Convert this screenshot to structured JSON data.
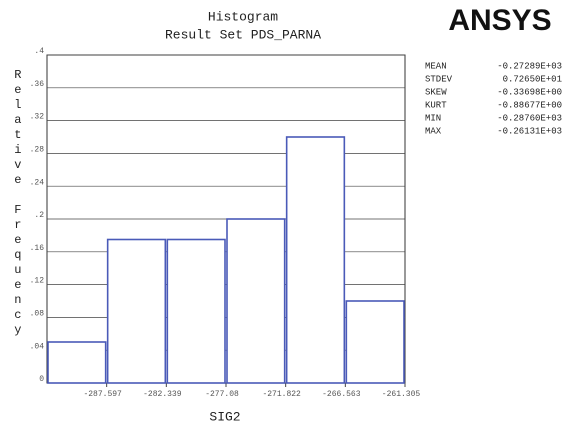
{
  "chart_data": {
    "type": "histogram",
    "title": "Histogram",
    "subtitle": "Result Set PDS_PARNA",
    "logo": "ANSYS",
    "xlabel": "SIG2",
    "ylabel": "Relative Frequency",
    "bins": [
      -292.855,
      -287.597,
      -282.339,
      -277.08,
      -271.822,
      -266.563,
      -261.305
    ],
    "values": [
      0.05,
      0.175,
      0.175,
      0.2,
      0.3,
      0.1
    ],
    "color": "#4a5ab8",
    "xlim": [
      -292.855,
      -261.305
    ],
    "xticks": [
      -287.597,
      -282.339,
      -277.08,
      -271.822,
      -266.563,
      -261.305
    ],
    "ylim": [
      0,
      0.4
    ],
    "yticks": [
      0,
      {
        "value": 0.04,
        "label": ".04"
      },
      {
        "value": 0.08,
        "label": ".08"
      },
      {
        "value": 0.12,
        "label": ".12"
      },
      {
        "value": 0.16,
        "label": ".16"
      },
      {
        "value": 0.2,
        "label": ".2"
      },
      {
        "value": 0.24,
        "label": ".24"
      },
      {
        "value": 0.28,
        "label": ".28"
      },
      {
        "value": 0.32,
        "label": ".32"
      },
      {
        "value": 0.36,
        "label": ".36"
      },
      {
        "value": 0.4,
        "label": ".4"
      }
    ],
    "grid": true,
    "stats": [
      {
        "label": "MEAN",
        "value": "-0.27289E+03"
      },
      {
        "label": "STDEV",
        "value": "0.72650E+01"
      },
      {
        "label": "SKEW",
        "value": "-0.33698E+00"
      },
      {
        "label": "KURT",
        "value": "-0.88677E+00"
      },
      {
        "label": "MIN",
        "value": "-0.28760E+03"
      },
      {
        "label": "MAX",
        "value": "-0.26131E+03"
      }
    ]
  }
}
